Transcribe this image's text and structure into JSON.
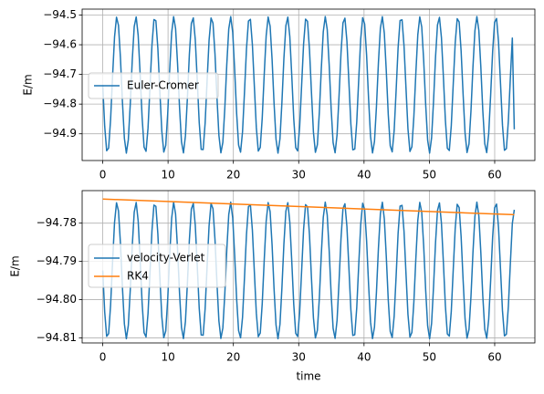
{
  "chart_data": [
    {
      "type": "line",
      "title": "",
      "xlabel": "",
      "ylabel": "E/m",
      "xlim": [
        -3.15,
        66.15
      ],
      "ylim": [
        -94.99,
        -94.48
      ],
      "xticks": [
        0,
        10,
        20,
        30,
        40,
        50,
        60
      ],
      "xtick_labels": [
        "0",
        "10",
        "20",
        "30",
        "40",
        "50",
        "60"
      ],
      "yticks": [
        -94.9,
        -94.8,
        -94.7,
        -94.6,
        -94.5
      ],
      "ytick_labels": [
        "−94.9",
        "−94.8",
        "−94.7",
        "−94.6",
        "−94.5"
      ],
      "grid": true,
      "legend_position": "center-left",
      "series": [
        {
          "name": "Euler-Cromer",
          "color": "#1f77b4",
          "pattern": {
            "kind": "oscillation",
            "x_start": 0.0,
            "x_end": 63.0,
            "period": 2.9,
            "y_max": -94.505,
            "y_min": -94.965,
            "phase_deg": 90,
            "end_y": -94.885,
            "samples": 210
          }
        }
      ]
    },
    {
      "type": "line",
      "title": "",
      "xlabel": "time",
      "ylabel": "E/m",
      "xlim": [
        -3.15,
        66.15
      ],
      "ylim": [
        -94.8113,
        -94.7715
      ],
      "xticks": [
        0,
        10,
        20,
        30,
        40,
        50,
        60
      ],
      "xtick_labels": [
        "0",
        "10",
        "20",
        "30",
        "40",
        "50",
        "60"
      ],
      "yticks": [
        -94.81,
        -94.8,
        -94.79,
        -94.78
      ],
      "ytick_labels": [
        "−94.81",
        "−94.80",
        "−94.79",
        "−94.78"
      ],
      "grid": true,
      "legend_position": "center-left",
      "series": [
        {
          "name": "velocity-Verlet",
          "color": "#1f77b4",
          "pattern": {
            "kind": "oscillation",
            "x_start": 0.0,
            "x_end": 63.0,
            "period": 2.9,
            "y_max": -94.7745,
            "y_min": -94.8102,
            "phase_deg": 90,
            "end_y": -94.7765,
            "samples": 210
          }
        },
        {
          "name": "RK4",
          "color": "#ff7f0e",
          "x": [
            0.0,
            63.0
          ],
          "y": [
            -94.7737,
            -94.7778
          ]
        }
      ]
    }
  ]
}
